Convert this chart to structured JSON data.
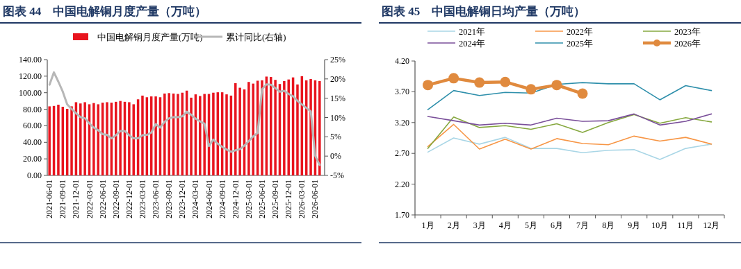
{
  "chart_data": [
    {
      "type": "bar",
      "title": "图表 44　中国电解铜月度产量（万吨）",
      "categories": [
        "2021-06-01",
        null,
        null,
        "2021-09-01",
        null,
        null,
        "2021-12-01",
        null,
        null,
        "2022-03-01",
        null,
        null,
        "2022-06-01",
        null,
        null,
        "2022-09-01",
        null,
        null,
        "2022-12-01",
        null,
        null,
        "2023-03-01",
        null,
        null,
        "2023-06-01",
        null,
        null,
        "2023-09-01",
        null,
        null,
        "2023-12-01",
        null,
        null,
        "2024-03-01",
        null,
        null,
        "2024-06-01",
        null,
        null,
        "2024-09-01",
        null,
        null,
        "2024-12-01",
        null,
        null,
        "2025-03-01",
        null,
        null,
        "2025-06-01",
        null,
        null,
        "2025-09-01",
        null,
        null,
        "2025-12-01",
        null,
        null,
        "2026-03-01",
        null,
        null,
        "2026-06-01",
        null
      ],
      "series": [
        {
          "name": "中国电解铜月度产量(万吨)",
          "type": "bar",
          "color": "#e8141e",
          "values": [
            83.5,
            84,
            85.5,
            83,
            80.5,
            83.5,
            88.5,
            87,
            88.5,
            86,
            87.5,
            86,
            88,
            88.5,
            88,
            89,
            90,
            89,
            88.5,
            86,
            92,
            96.5,
            94.5,
            95.5,
            95.5,
            94.5,
            99,
            99.5,
            99,
            98.5,
            100,
            102.5,
            94,
            98,
            96,
            98.5,
            98.5,
            100,
            100.5,
            100.5,
            98,
            96.5,
            111.5,
            106,
            104,
            113,
            111,
            114.5,
            115,
            119.5,
            119,
            115.5,
            110.5,
            114,
            116,
            118.5,
            110,
            120,
            115,
            116.5,
            115,
            114
          ]
        },
        {
          "name": "累计同比(右轴)",
          "type": "line",
          "axis": "y2",
          "color": "#b7b7b7",
          "values": [
            18.5,
            21.7,
            19.3,
            16.7,
            13.4,
            12.2,
            11.1,
            10.1,
            9.8,
            8.5,
            7.4,
            6.7,
            5.7,
            5.5,
            4.6,
            5.4,
            6.5,
            6.5,
            5.4,
            4.6,
            4.6,
            5.4,
            5.5,
            6.1,
            8.3,
            7.4,
            8.9,
            9.8,
            10.1,
            10.1,
            10.3,
            11.5,
            10.7,
            9.7,
            9.0,
            8.4,
            2.6,
            4.3,
            3.2,
            2.4,
            1.7,
            1.1,
            1.5,
            1.8,
            2.7,
            3.9,
            5.1,
            6.0,
            17.3,
            18.6,
            18.5,
            17.6,
            16.7,
            16.9,
            16.1,
            15.5,
            14.3,
            13.4,
            12.5,
            11.6,
            0.1,
            -2.3
          ]
        }
      ],
      "ylim": [
        0,
        140
      ],
      "yticks": [
        {
          "value": 0,
          "label": "0.00"
        },
        {
          "value": 20,
          "label": "20.00"
        },
        {
          "value": 40,
          "label": "40.00"
        },
        {
          "value": 60,
          "label": "60.00"
        },
        {
          "value": 80,
          "label": "80.00"
        },
        {
          "value": 100,
          "label": "100.00"
        },
        {
          "value": 120,
          "label": "120.00"
        },
        {
          "value": 140,
          "label": "140.00"
        }
      ],
      "y2lim": [
        -5,
        25
      ],
      "y2ticks": [
        {
          "value": -5,
          "label": "-5%"
        },
        {
          "value": 0,
          "label": "0%"
        },
        {
          "value": 5,
          "label": "5%"
        },
        {
          "value": 10,
          "label": "10%"
        },
        {
          "value": 15,
          "label": "15%"
        },
        {
          "value": 20,
          "label": "20%"
        },
        {
          "value": 25,
          "label": "25%"
        }
      ],
      "legend": "top",
      "grid": false
    },
    {
      "type": "line",
      "title": "图表 45　中国电解铜日均产量（万吨）",
      "categories": [
        "1月",
        "2月",
        "3月",
        "4月",
        "5月",
        "6月",
        "7月",
        "8月",
        "9月",
        "10月",
        "11月",
        "12月"
      ],
      "series": [
        {
          "name": "2021年",
          "color": "#a9d6e6",
          "values": [
            2.72,
            2.95,
            2.85,
            2.96,
            2.78,
            2.78,
            2.71,
            2.75,
            2.76,
            2.6,
            2.78,
            2.85
          ]
        },
        {
          "name": "2022年",
          "color": "#f79646",
          "values": [
            2.81,
            3.17,
            2.77,
            2.93,
            2.77,
            2.94,
            2.86,
            2.84,
            2.98,
            2.9,
            2.96,
            2.85
          ]
        },
        {
          "name": "2023年",
          "color": "#86a83f",
          "values": [
            2.78,
            3.29,
            3.12,
            3.15,
            3.09,
            3.18,
            3.04,
            3.2,
            3.33,
            3.19,
            3.28,
            3.21
          ]
        },
        {
          "name": "2024年",
          "color": "#7a4f9a",
          "values": [
            3.3,
            3.23,
            3.16,
            3.19,
            3.16,
            3.27,
            3.22,
            3.23,
            3.34,
            3.16,
            3.22,
            3.34
          ]
        },
        {
          "name": "2025年",
          "color": "#2e8fab",
          "values": [
            3.41,
            3.72,
            3.64,
            3.69,
            3.68,
            3.82,
            3.85,
            3.83,
            3.83,
            3.57,
            3.8,
            3.72
          ]
        },
        {
          "name": "2026年",
          "color": "#e08a3e",
          "marker": "circle",
          "values": [
            3.81,
            3.92,
            3.85,
            3.86,
            3.74,
            3.81,
            3.67,
            null,
            null,
            null,
            null,
            null
          ]
        }
      ],
      "ylim": [
        1.7,
        4.2
      ],
      "yticks": [
        {
          "value": 1.7,
          "label": "1.70"
        },
        {
          "value": 2.2,
          "label": "2.20"
        },
        {
          "value": 2.7,
          "label": "2.70"
        },
        {
          "value": 3.2,
          "label": "3.20"
        },
        {
          "value": 3.7,
          "label": "3.70"
        },
        {
          "value": 4.2,
          "label": "4.20"
        }
      ],
      "legend": "top",
      "grid": false
    }
  ]
}
